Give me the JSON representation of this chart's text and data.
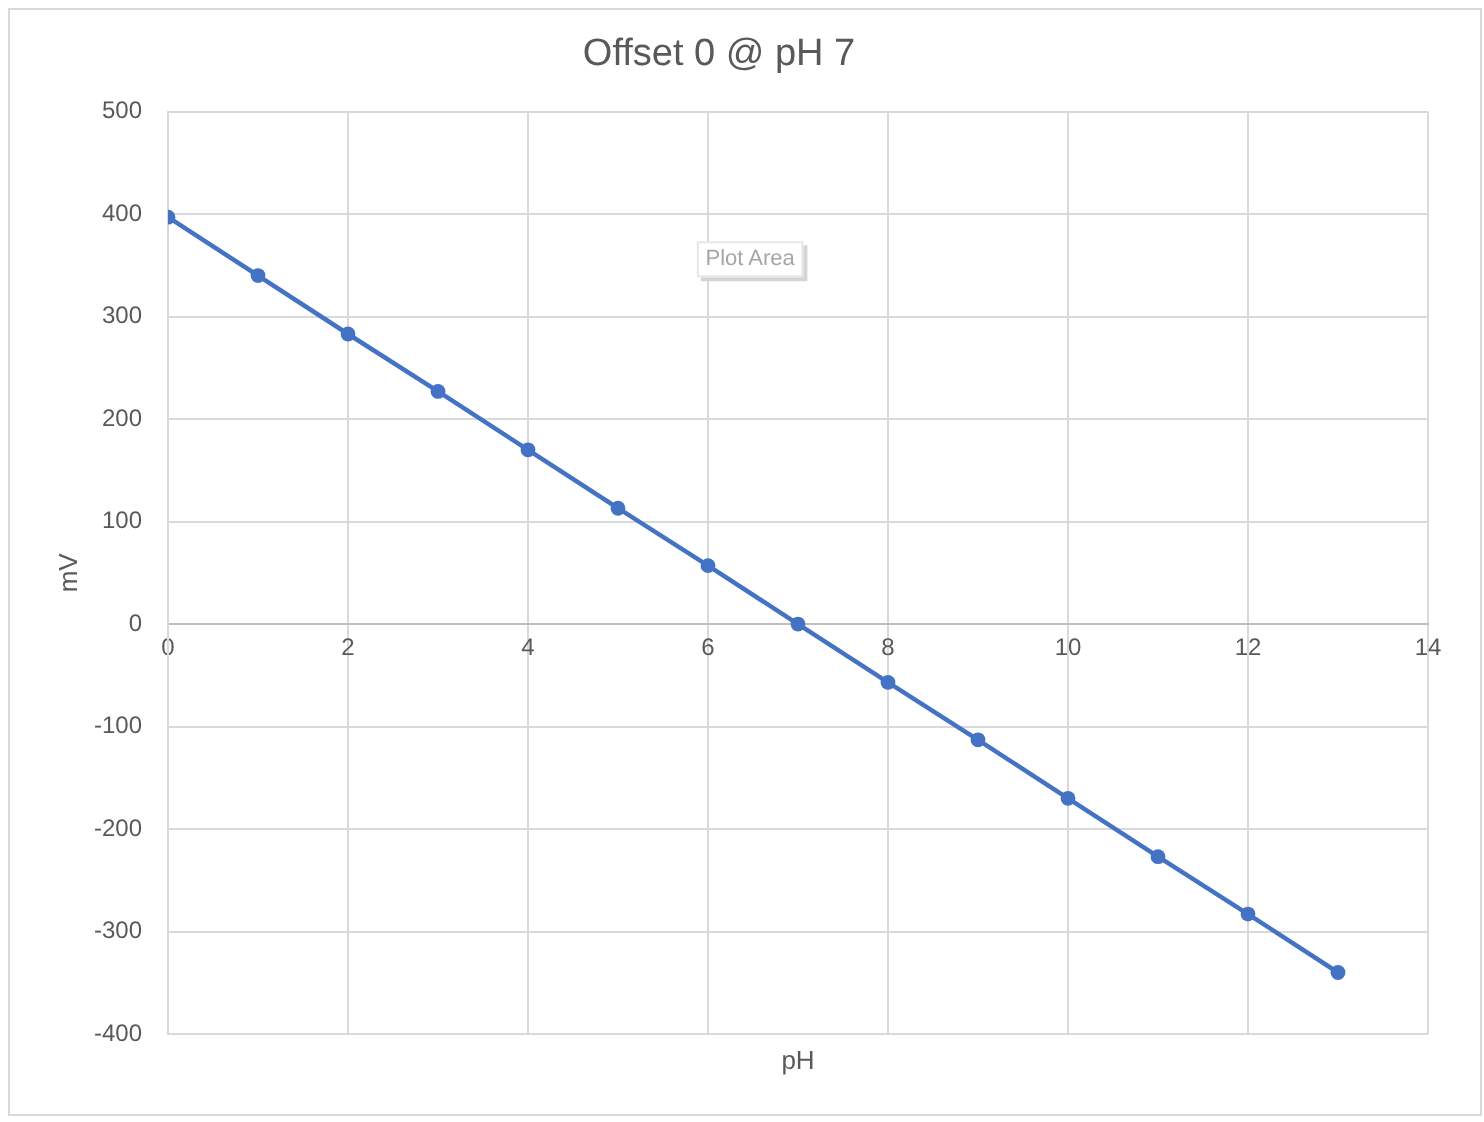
{
  "chart_data": {
    "type": "line",
    "title": "Offset 0 @ pH 7",
    "xlabel": "pH",
    "ylabel": "mV",
    "x": [
      0,
      1,
      2,
      3,
      4,
      5,
      6,
      7,
      8,
      9,
      10,
      11,
      12,
      13
    ],
    "series": [
      {
        "color": "#4472c4",
        "values": [
          397,
          340,
          283,
          227,
          170,
          113,
          57,
          0,
          -57,
          -113,
          -170,
          -227,
          -283,
          -340
        ]
      }
    ],
    "xlim": [
      0,
      14
    ],
    "xticks": [
      0,
      2,
      4,
      6,
      8,
      10,
      12,
      14
    ],
    "ylim": [
      -400,
      500
    ],
    "yticks": [
      -400,
      -300,
      -200,
      -100,
      0,
      100,
      200,
      300,
      400,
      500
    ],
    "grid": true,
    "marker": "circle",
    "line_style": "solid",
    "annotations": [
      "Plot Area"
    ]
  }
}
